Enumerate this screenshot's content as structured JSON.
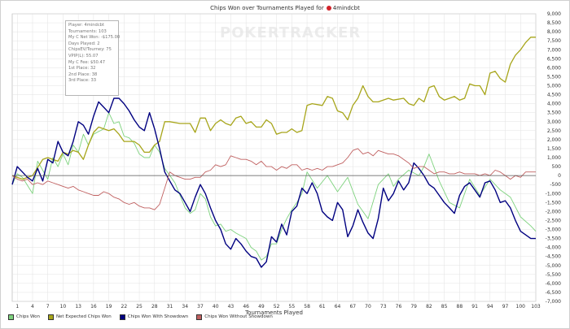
{
  "title_prefix": "Chips Won over Tournaments Played for",
  "player_name": "4mindcbt",
  "watermark": "POKERTRACKER",
  "stats": [
    "Player: 4mindcbt",
    "Tournaments: 103",
    "My C Net Won: -$175.00",
    "Days Played: 2",
    "ChipsEV/Tourney: 75",
    "VPIP(L): 55.07",
    "My C Fee: $50.47",
    "1st Place: 32",
    "2nd Place: 38",
    "3rd Place: 33"
  ],
  "colors": {
    "chips_won": "#7dd27d",
    "net_expected": "#a7a51a",
    "with_showdown": "#000080",
    "without_showdown": "#c06060",
    "grid": "#e2e2e2",
    "zero": "#555555"
  },
  "chart_data": {
    "type": "line",
    "title": "Chips Won over Tournaments Played for 4mindcbt",
    "xlabel": "Tournaments Played",
    "ylabel": "",
    "xlim": [
      0,
      103
    ],
    "ylim": [
      -7000,
      9000
    ],
    "x_ticks": [
      1,
      4,
      7,
      10,
      13,
      16,
      19,
      22,
      25,
      28,
      31,
      34,
      37,
      40,
      43,
      46,
      49,
      52,
      55,
      58,
      61,
      64,
      67,
      70,
      73,
      76,
      79,
      82,
      85,
      88,
      91,
      94,
      97,
      100,
      103
    ],
    "y_ticks": [
      -7000,
      -6500,
      -6000,
      -5500,
      -5000,
      -4500,
      -4000,
      -3500,
      -3000,
      -2500,
      -2000,
      -1500,
      -1000,
      -500,
      0,
      500,
      1000,
      1500,
      2000,
      2500,
      3000,
      3500,
      4000,
      4500,
      5000,
      5500,
      6000,
      6500,
      7000,
      7500,
      8000,
      8500,
      9000
    ],
    "grid": true,
    "legend": "bottom",
    "series": [
      {
        "name": "Chips Won",
        "color_key": "chips_won",
        "x": [
          0,
          1,
          2,
          4,
          5,
          7,
          8,
          9,
          10,
          11,
          12,
          13,
          14,
          15,
          16,
          18,
          19,
          20,
          21,
          22,
          23,
          24,
          25,
          26,
          27,
          28,
          29,
          30,
          32,
          34,
          35,
          36,
          37,
          38,
          39,
          40,
          41,
          42,
          43,
          44,
          46,
          47,
          48,
          49,
          50,
          51,
          52,
          53,
          54,
          55,
          56,
          57,
          58,
          60,
          62,
          64,
          66,
          68,
          70,
          72,
          74,
          75,
          76,
          78,
          80,
          81,
          82,
          84,
          86,
          88,
          90,
          92,
          94,
          96,
          98,
          100,
          102,
          103
        ],
        "y": [
          -500,
          100,
          -100,
          -1000,
          800,
          -200,
          1000,
          500,
          1200,
          600,
          1700,
          1300,
          2300,
          1700,
          2300,
          2600,
          3500,
          2900,
          3000,
          2200,
          2100,
          1800,
          1200,
          1000,
          1000,
          1700,
          1300,
          400,
          -400,
          -1800,
          -2100,
          -1900,
          -1000,
          -1300,
          -2300,
          -2800,
          -2700,
          -3100,
          -3000,
          -3200,
          -3500,
          -4000,
          -4200,
          -4700,
          -4500,
          -3800,
          -3800,
          -3000,
          -2400,
          -1900,
          -1500,
          -1000,
          200,
          -700,
          0,
          -900,
          -100,
          -1600,
          -2400,
          -500,
          100,
          -600,
          -200,
          300,
          0,
          500,
          1200,
          -300,
          -1500,
          -1800,
          -200,
          -1100,
          -200,
          -800,
          -1200,
          -2300,
          -2800,
          -3100
        ]
      },
      {
        "name": "Net Expected Chips Won",
        "color_key": "net_expected",
        "x": [
          0,
          2,
          4,
          6,
          7,
          8,
          9,
          10,
          11,
          12,
          13,
          14,
          15,
          16,
          17,
          18,
          19,
          20,
          21,
          22,
          24,
          25,
          26,
          27,
          28,
          29,
          30,
          31,
          33,
          35,
          36,
          37,
          38,
          39,
          40,
          41,
          42,
          43,
          44,
          45,
          46,
          47,
          48,
          49,
          50,
          51,
          52,
          53,
          54,
          55,
          56,
          57,
          58,
          59,
          61,
          62,
          63,
          64,
          65,
          66,
          67,
          68,
          69,
          70,
          71,
          72,
          74,
          75,
          77,
          78,
          79,
          80,
          81,
          82,
          83,
          84,
          85,
          86,
          87,
          88,
          89,
          90,
          91,
          92,
          93,
          94,
          95,
          96,
          97,
          98,
          99,
          100,
          101,
          102,
          103
        ],
        "y": [
          0,
          -200,
          0,
          900,
          1000,
          900,
          800,
          1300,
          1200,
          1400,
          1300,
          900,
          1700,
          2400,
          2700,
          2600,
          2500,
          2600,
          2300,
          1900,
          1900,
          1700,
          1300,
          1300,
          1700,
          1900,
          3000,
          3000,
          2900,
          2900,
          2400,
          3200,
          3200,
          2500,
          2900,
          3100,
          2900,
          2800,
          3200,
          3300,
          2900,
          3000,
          2700,
          2700,
          3100,
          2900,
          2300,
          2400,
          2400,
          2600,
          2400,
          2500,
          3900,
          4000,
          3900,
          4400,
          4300,
          3600,
          3500,
          3100,
          3900,
          4300,
          5000,
          4400,
          4100,
          4100,
          4300,
          4200,
          4300,
          4000,
          3900,
          4300,
          4100,
          4900,
          5000,
          4400,
          4200,
          4300,
          4400,
          4200,
          4300,
          5100,
          5000,
          5000,
          4500,
          5700,
          5800,
          5400,
          5200,
          6200,
          6700,
          7000,
          7400,
          7700,
          7700
        ]
      },
      {
        "name": "Chips Won With Showdown",
        "color_key": "with_showdown",
        "x": [
          0,
          1,
          2,
          3,
          4,
          5,
          6,
          7,
          8,
          9,
          10,
          11,
          12,
          13,
          14,
          15,
          16,
          17,
          18,
          19,
          20,
          21,
          22,
          23,
          24,
          25,
          26,
          27,
          28,
          29,
          30,
          31,
          32,
          33,
          34,
          35,
          36,
          37,
          38,
          39,
          40,
          41,
          42,
          43,
          44,
          45,
          46,
          47,
          48,
          49,
          50,
          51,
          52,
          53,
          54,
          55,
          56,
          57,
          58,
          59,
          60,
          61,
          62,
          63,
          64,
          65,
          66,
          67,
          68,
          69,
          70,
          71,
          72,
          73,
          74,
          75,
          76,
          77,
          78,
          79,
          80,
          81,
          82,
          83,
          84,
          85,
          86,
          87,
          88,
          89,
          90,
          91,
          92,
          93,
          94,
          95,
          96,
          97,
          98,
          99,
          100,
          101,
          102,
          103
        ],
        "y": [
          -500,
          500,
          200,
          -100,
          -300,
          400,
          -300,
          900,
          700,
          1900,
          1300,
          1100,
          1900,
          3000,
          2800,
          2300,
          3300,
          4100,
          3800,
          3500,
          4300,
          4300,
          4000,
          3600,
          3100,
          2700,
          2500,
          3500,
          2600,
          1500,
          200,
          -300,
          -800,
          -1000,
          -1500,
          -2000,
          -1200,
          -500,
          -1000,
          -1800,
          -2500,
          -3000,
          -3800,
          -4100,
          -3500,
          -3800,
          -4200,
          -4500,
          -4600,
          -5100,
          -4800,
          -3400,
          -3700,
          -2700,
          -3300,
          -2000,
          -1700,
          -700,
          -1000,
          -400,
          -1000,
          -2000,
          -2300,
          -2500,
          -1500,
          -1900,
          -3400,
          -2800,
          -1900,
          -2600,
          -3200,
          -3500,
          -2400,
          -700,
          -1400,
          -1000,
          -300,
          -800,
          -400,
          700,
          400,
          0,
          -500,
          -700,
          -1100,
          -1500,
          -1800,
          -2100,
          -1100,
          -600,
          -400,
          -800,
          -1200,
          -400,
          -300,
          -800,
          -1500,
          -1400,
          -1800,
          -2500,
          -3100,
          -3300,
          -3500,
          -3500
        ]
      },
      {
        "name": "Chips Won Without Showdown",
        "color_key": "without_showdown",
        "x": [
          0,
          1,
          2,
          3,
          4,
          5,
          6,
          7,
          8,
          9,
          10,
          11,
          12,
          13,
          14,
          15,
          16,
          17,
          18,
          19,
          20,
          21,
          22,
          23,
          24,
          25,
          26,
          27,
          28,
          29,
          30,
          31,
          32,
          33,
          34,
          35,
          36,
          37,
          38,
          39,
          40,
          41,
          42,
          43,
          44,
          45,
          46,
          47,
          48,
          49,
          50,
          51,
          52,
          53,
          54,
          55,
          56,
          57,
          58,
          59,
          60,
          61,
          62,
          63,
          64,
          65,
          66,
          67,
          68,
          69,
          70,
          71,
          72,
          73,
          74,
          75,
          76,
          77,
          78,
          79,
          80,
          81,
          82,
          83,
          84,
          85,
          86,
          87,
          88,
          89,
          90,
          91,
          92,
          93,
          94,
          95,
          96,
          97,
          98,
          99,
          100,
          101,
          102,
          103
        ],
        "y": [
          0,
          -200,
          -300,
          -200,
          -500,
          -400,
          -500,
          -300,
          -400,
          -500,
          -600,
          -700,
          -600,
          -800,
          -900,
          -1000,
          -1100,
          -1100,
          -900,
          -1000,
          -1200,
          -1300,
          -1500,
          -1600,
          -1500,
          -1700,
          -1800,
          -1800,
          -1900,
          -1600,
          -700,
          200,
          0,
          -100,
          -200,
          -200,
          -100,
          -100,
          200,
          300,
          600,
          500,
          600,
          1100,
          1000,
          900,
          900,
          800,
          600,
          800,
          500,
          500,
          300,
          500,
          400,
          600,
          600,
          300,
          400,
          300,
          400,
          300,
          500,
          500,
          600,
          700,
          1000,
          1400,
          1500,
          1200,
          1300,
          1100,
          1400,
          1300,
          1200,
          1200,
          1100,
          900,
          700,
          400,
          500,
          500,
          300,
          100,
          200,
          200,
          100,
          100,
          200,
          100,
          100,
          100,
          0,
          100,
          0,
          300,
          200,
          0,
          -200,
          0,
          -100,
          200,
          200,
          200
        ]
      }
    ]
  }
}
